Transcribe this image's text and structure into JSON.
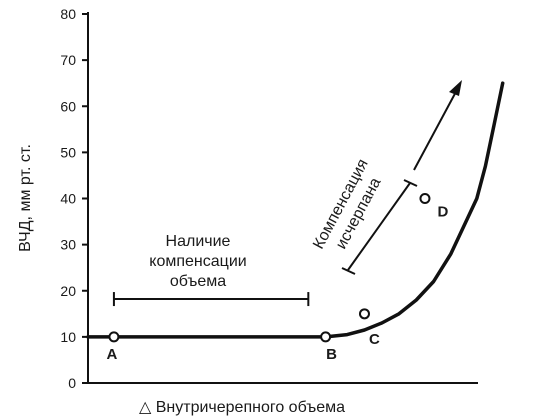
{
  "chart_data": {
    "type": "line",
    "title": "",
    "xlabel": "△ Внутричерепного объема",
    "ylabel": "ВЧД, мм рт. ст.",
    "ylim": [
      0,
      80
    ],
    "yticks": [
      0,
      10,
      20,
      30,
      40,
      50,
      60,
      70,
      80
    ],
    "xlim": [
      0,
      100
    ],
    "grid": false,
    "series": [
      {
        "x": [
          0,
          10,
          30,
          55,
          60,
          64,
          68,
          72,
          76,
          80,
          84,
          88,
          90,
          92,
          94,
          96
        ],
        "y": [
          10,
          10,
          10,
          10,
          10.5,
          11.5,
          13,
          15,
          18,
          22,
          28,
          36,
          40,
          47,
          56,
          65
        ]
      }
    ],
    "points": [
      {
        "label": "A",
        "x": 6,
        "y": 10
      },
      {
        "label": "B",
        "x": 55,
        "y": 10
      },
      {
        "label": "C",
        "x": 64,
        "y": 15
      },
      {
        "label": "D",
        "x": 78,
        "y": 40
      }
    ],
    "annotations": {
      "compensation_present": [
        "Наличие",
        "компенсации",
        "объема"
      ],
      "compensation_exhausted": [
        "Компенсация",
        "исчерпана"
      ]
    }
  }
}
